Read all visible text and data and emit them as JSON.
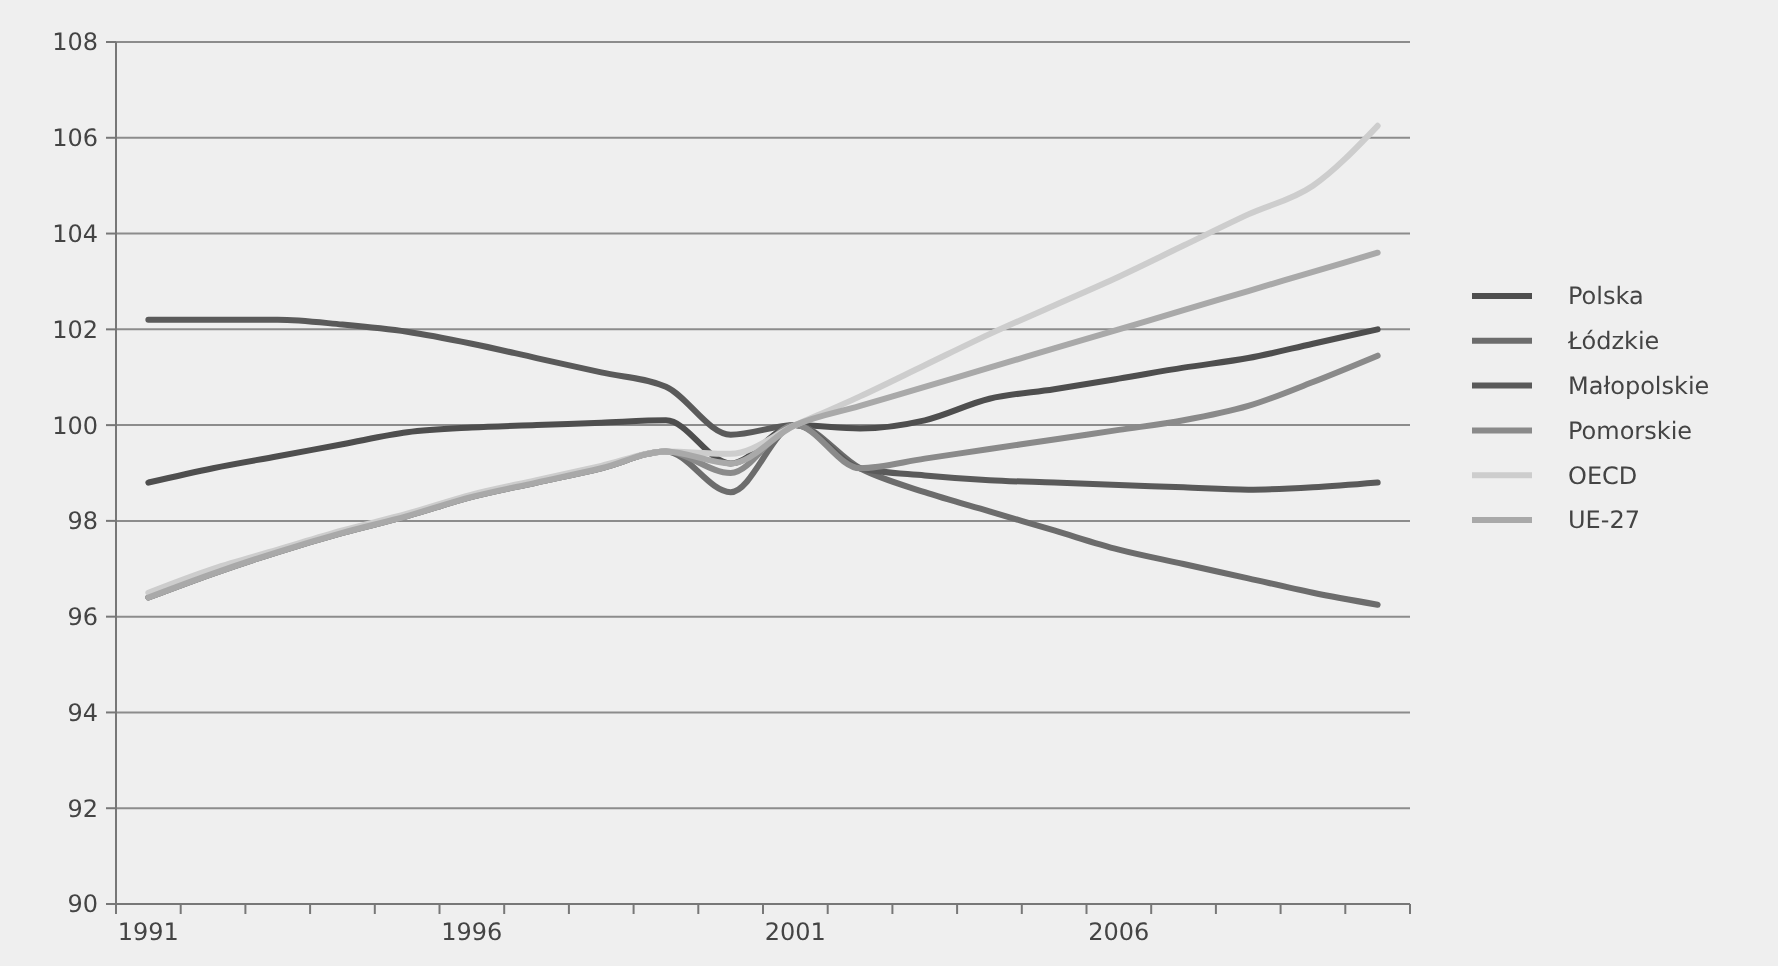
{
  "chart_data": {
    "type": "line",
    "categories": [
      "1991",
      null,
      null,
      null,
      null,
      "1996",
      null,
      null,
      null,
      null,
      "2001",
      null,
      null,
      null,
      null,
      "2006",
      null,
      null,
      null,
      null
    ],
    "ylim": [
      90,
      108
    ],
    "yticks": [
      90,
      92,
      94,
      96,
      98,
      100,
      102,
      104,
      106,
      108
    ],
    "grid": "y",
    "legend": "right",
    "marker": "none",
    "line_style": "solid",
    "series": [
      {
        "name": "Polska",
        "color": "#4e4e4e",
        "values": [
          98.8,
          99.1,
          99.35,
          99.6,
          99.85,
          99.95,
          100,
          100.05,
          100.1,
          99.2,
          100,
          99.93,
          100.1,
          100.55,
          100.75,
          100.97,
          101.2,
          101.4,
          101.7,
          102
        ]
      },
      {
        "name": "Łódzkie",
        "color": "#6c6c6c",
        "values": [
          96.4,
          96.9,
          97.35,
          97.75,
          98.1,
          98.5,
          98.8,
          99.1,
          99.45,
          98.6,
          100,
          99.1,
          98.6,
          98.2,
          97.8,
          97.4,
          97.1,
          96.8,
          96.5,
          96.25
        ]
      },
      {
        "name": "Małopolskie",
        "color": "#5a5a5a",
        "values": [
          102.2,
          102.2,
          102.2,
          102.1,
          101.95,
          101.7,
          101.4,
          101.1,
          100.8,
          99.8,
          100,
          99.1,
          98.95,
          98.85,
          98.8,
          98.75,
          98.7,
          98.65,
          98.7,
          98.8
        ]
      },
      {
        "name": "Pomorskie",
        "color": "#8a8a8a",
        "values": [
          96.4,
          96.9,
          97.35,
          97.75,
          98.1,
          98.5,
          98.8,
          99.1,
          99.45,
          99,
          100,
          99.1,
          99.3,
          99.5,
          99.7,
          99.9,
          100.1,
          100.4,
          100.9,
          101.45
        ]
      },
      {
        "name": "OECD",
        "color": "#cdcdcd",
        "values": [
          96.5,
          97,
          97.4,
          97.8,
          98.15,
          98.55,
          98.85,
          99.15,
          99.45,
          99.4,
          100,
          100.6,
          101.25,
          101.9,
          102.5,
          103.1,
          103.75,
          104.4,
          105,
          106.25
        ]
      },
      {
        "name": "UE-27",
        "color": "#a9a9a9",
        "values": [
          96.4,
          96.9,
          97.35,
          97.75,
          98.1,
          98.5,
          98.8,
          99.1,
          99.45,
          99.2,
          100,
          100.4,
          100.8,
          101.2,
          101.6,
          102,
          102.4,
          102.8,
          103.2,
          103.6
        ]
      }
    ]
  }
}
